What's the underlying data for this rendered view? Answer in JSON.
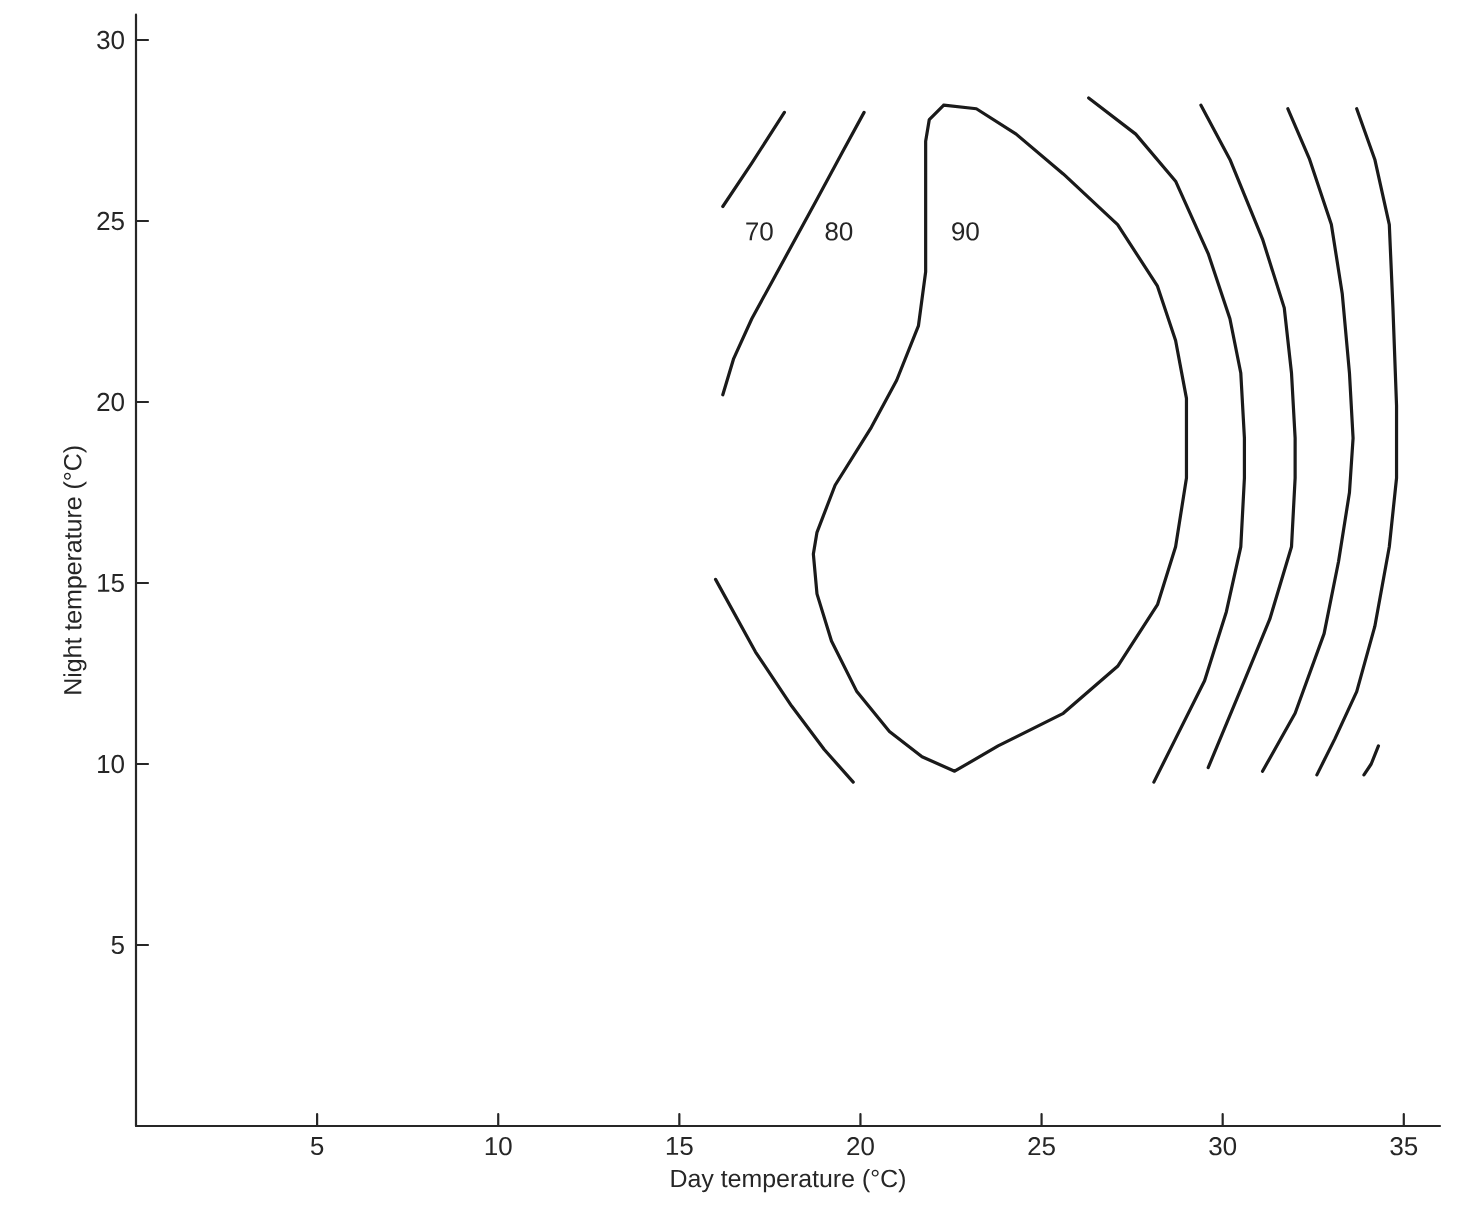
{
  "chart_data": {
    "type": "line",
    "xlabel": "Day temperature (°C)",
    "ylabel": "Night temperature (°C)",
    "xlim": [
      0,
      36
    ],
    "ylim": [
      0,
      30.7
    ],
    "xticks": [
      5,
      10,
      15,
      20,
      25,
      30,
      35
    ],
    "yticks": [
      5,
      10,
      15,
      20,
      25,
      30
    ],
    "marker": "none",
    "line_style": "solid",
    "annotations": [
      "70",
      "80",
      "90"
    ],
    "series": [
      {
        "color": "#1a1a1a",
        "x": [
          16.2,
          17.0,
          17.9
        ],
        "values": [
          25.4,
          26.6,
          28.0
        ]
      },
      {
        "color": "#1a1a1a",
        "x": [
          16.2,
          16.5,
          17.0,
          17.6,
          18.2,
          18.8,
          19.5,
          20.1
        ],
        "values": [
          20.2,
          21.2,
          22.3,
          23.4,
          24.5,
          25.6,
          26.9,
          28.0
        ]
      },
      {
        "color": "#1a1a1a",
        "x": [
          22.3,
          23.2,
          24.3,
          25.6,
          27.1,
          28.2,
          28.7,
          29.0,
          29.0,
          28.7,
          28.2,
          27.1,
          25.6,
          23.8,
          22.6,
          21.7,
          20.8,
          19.9,
          19.2,
          18.8,
          18.7,
          18.8,
          19.3,
          20.3,
          21.0,
          21.6,
          21.8,
          21.8,
          21.9,
          22.3,
          23.2
        ],
        "values": [
          28.2,
          28.1,
          27.4,
          26.3,
          24.9,
          23.2,
          21.7,
          20.1,
          17.9,
          16.0,
          14.4,
          12.7,
          11.4,
          10.5,
          9.8,
          10.2,
          10.9,
          12.0,
          13.4,
          14.7,
          15.8,
          16.4,
          17.7,
          19.3,
          20.6,
          22.1,
          23.6,
          27.2,
          27.8,
          28.2,
          28.1
        ]
      },
      {
        "color": "#1a1a1a",
        "x": [
          16.0,
          17.1,
          18.1,
          19.0,
          19.8
        ],
        "values": [
          15.1,
          13.1,
          11.6,
          10.4,
          9.5
        ]
      },
      {
        "color": "#1a1a1a",
        "x": [
          26.3,
          27.6,
          28.7,
          29.6,
          30.2,
          30.5,
          30.6,
          30.6,
          30.5,
          30.1,
          29.5,
          28.7,
          28.1
        ],
        "values": [
          28.4,
          27.4,
          26.1,
          24.1,
          22.3,
          20.8,
          19.0,
          17.9,
          16.0,
          14.2,
          12.3,
          10.7,
          9.5
        ]
      },
      {
        "color": "#1a1a1a",
        "x": [
          29.4,
          30.2,
          31.1,
          31.7,
          31.9,
          32.0,
          32.0,
          31.9,
          31.3,
          30.6,
          29.6
        ],
        "values": [
          28.2,
          26.7,
          24.5,
          22.6,
          20.8,
          19.0,
          17.9,
          16.0,
          14.0,
          12.3,
          9.9
        ]
      },
      {
        "color": "#1a1a1a",
        "x": [
          31.8,
          32.4,
          33.0,
          33.3,
          33.5,
          33.6,
          33.5,
          33.2,
          32.8,
          32.0,
          31.1
        ],
        "values": [
          28.1,
          26.7,
          24.9,
          23.0,
          20.8,
          19.0,
          17.5,
          15.6,
          13.6,
          11.4,
          9.8
        ]
      },
      {
        "color": "#1a1a1a",
        "x": [
          33.7,
          34.2,
          34.6,
          34.7,
          34.8,
          34.8,
          34.6,
          34.2,
          33.7,
          33.1,
          32.6
        ],
        "values": [
          28.1,
          26.7,
          24.9,
          22.6,
          19.9,
          17.9,
          16.0,
          13.8,
          12.0,
          10.7,
          9.7
        ]
      },
      {
        "color": "#1a1a1a",
        "x": [
          34.3,
          34.1,
          33.9
        ],
        "values": [
          10.5,
          10.0,
          9.7
        ]
      }
    ]
  }
}
